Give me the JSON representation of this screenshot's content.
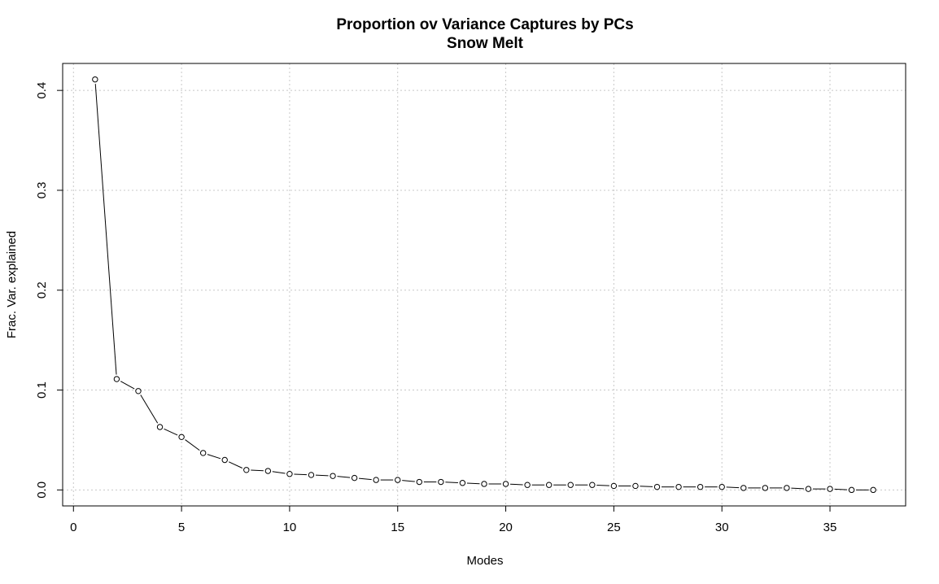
{
  "chart_data": {
    "type": "line",
    "title": "Proportion ov Variance Captures by PCs",
    "subtitle": "Snow Melt",
    "xlabel": "Modes",
    "ylabel": "Frac. Var. explained",
    "xlim": [
      -0.5,
      38.5
    ],
    "ylim": [
      -0.016,
      0.427
    ],
    "xticks": [
      0,
      5,
      10,
      15,
      20,
      25,
      30,
      35
    ],
    "yticks": [
      0.0,
      0.1,
      0.2,
      0.3,
      0.4
    ],
    "ytick_labels": [
      "0.0",
      "0.1",
      "0.2",
      "0.3",
      "0.4"
    ],
    "grid": true,
    "x": [
      1,
      2,
      3,
      4,
      5,
      6,
      7,
      8,
      9,
      10,
      11,
      12,
      13,
      14,
      15,
      16,
      17,
      18,
      19,
      20,
      21,
      22,
      23,
      24,
      25,
      26,
      27,
      28,
      29,
      30,
      31,
      32,
      33,
      34,
      35,
      36,
      37
    ],
    "y": [
      0.411,
      0.111,
      0.099,
      0.063,
      0.053,
      0.037,
      0.03,
      0.02,
      0.019,
      0.016,
      0.015,
      0.014,
      0.012,
      0.01,
      0.01,
      0.008,
      0.008,
      0.007,
      0.006,
      0.006,
      0.005,
      0.005,
      0.005,
      0.005,
      0.004,
      0.004,
      0.003,
      0.003,
      0.003,
      0.003,
      0.002,
      0.002,
      0.002,
      0.001,
      0.001,
      0.0,
      0.0
    ]
  }
}
